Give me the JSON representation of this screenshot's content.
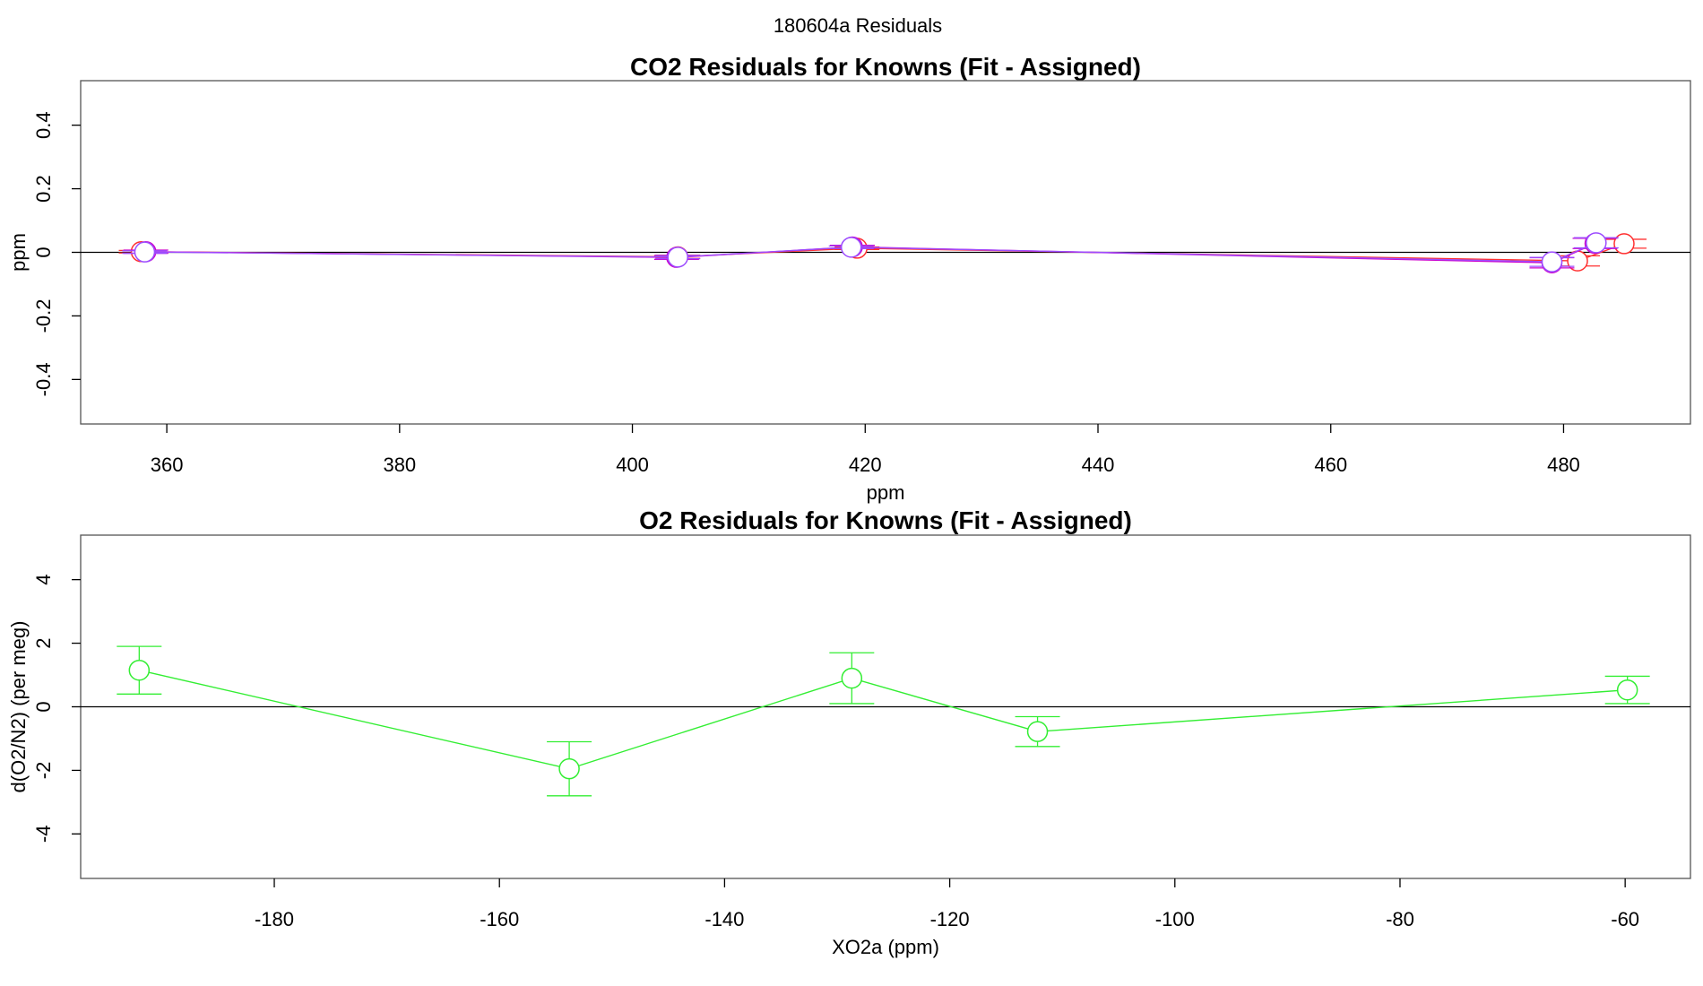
{
  "figure_title": "180604a  Residuals",
  "chart_data": [
    {
      "type": "line",
      "title": "CO2 Residuals for Knowns (Fit - Assigned)",
      "xlabel": "ppm",
      "ylabel": "ppm",
      "xlim": [
        352.6,
        490.9
      ],
      "ylim": [
        -0.54,
        0.54
      ],
      "xticks": [
        360,
        380,
        400,
        420,
        440,
        460,
        480
      ],
      "yticks": [
        -0.4,
        -0.2,
        0.0,
        0.2,
        0.4
      ],
      "hline": 0,
      "grid": false,
      "series": [
        {
          "color": "#ff3030",
          "points": [
            {
              "x": 357.8,
              "y": 0.002,
              "err": 0.004
            },
            {
              "x": 403.9,
              "y": -0.014,
              "err": 0.005
            },
            {
              "x": 419.3,
              "y": 0.013,
              "err": 0.004
            },
            {
              "x": 481.2,
              "y": -0.027,
              "err": 0.016
            },
            {
              "x": 485.2,
              "y": 0.027,
              "err": 0.014
            }
          ]
        },
        {
          "color": "#cc00cc",
          "points": [
            {
              "x": 358.2,
              "y": 0.002,
              "err": 0.005
            },
            {
              "x": 403.8,
              "y": -0.016,
              "err": 0.006
            },
            {
              "x": 418.9,
              "y": 0.017,
              "err": 0.005
            },
            {
              "x": 479.0,
              "y": -0.033,
              "err": 0.016
            },
            {
              "x": 482.7,
              "y": 0.028,
              "err": 0.016
            }
          ]
        },
        {
          "color": "#9c4cff",
          "points": [
            {
              "x": 358.1,
              "y": 0.001,
              "err": 0.004
            },
            {
              "x": 403.9,
              "y": -0.015,
              "err": 0.005
            },
            {
              "x": 418.8,
              "y": 0.016,
              "err": 0.004
            },
            {
              "x": 479.0,
              "y": -0.03,
              "err": 0.014
            },
            {
              "x": 482.8,
              "y": 0.03,
              "err": 0.016
            }
          ]
        }
      ]
    },
    {
      "type": "line",
      "title": "O2 Residuals for Knowns (Fit - Assigned)",
      "xlabel": "XO2a (ppm)",
      "ylabel": "d(O2/N2) (per meg)",
      "xlim": [
        -197.2,
        -54.2
      ],
      "ylim": [
        -5.4,
        5.4
      ],
      "xticks": [
        -180,
        -160,
        -140,
        -120,
        -100,
        -80,
        -60
      ],
      "yticks": [
        -4,
        -2,
        0,
        2,
        4
      ],
      "hline": 0,
      "grid": false,
      "series": [
        {
          "color": "#33ee33",
          "points": [
            {
              "x": -192.0,
              "y": 1.15,
              "err": 0.75
            },
            {
              "x": -153.8,
              "y": -1.95,
              "err": 0.85
            },
            {
              "x": -128.7,
              "y": 0.9,
              "err": 0.8
            },
            {
              "x": -112.2,
              "y": -0.78,
              "err": 0.47
            },
            {
              "x": -59.8,
              "y": 0.53,
              "err": 0.43
            }
          ]
        }
      ]
    }
  ]
}
